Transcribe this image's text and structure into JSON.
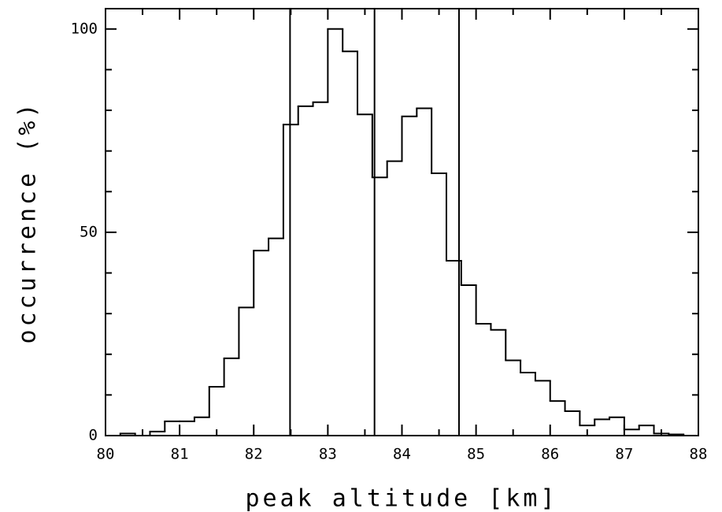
{
  "chart_data": {
    "type": "histogram",
    "x_label": "peak altitude [km]",
    "y_label": "occurrence (%)",
    "bins": [
      80,
      80.2,
      80.4,
      80.6,
      80.8,
      81,
      81.2,
      81.4,
      81.6,
      81.8,
      82,
      82.2,
      82.4,
      82.6,
      82.8,
      83,
      83.2,
      83.4,
      83.6,
      83.8,
      84,
      84.2,
      84.4,
      84.6,
      84.8,
      85,
      85.2,
      85.4,
      85.6,
      85.8,
      86,
      86.2,
      86.4,
      86.6,
      86.8,
      87,
      87.2,
      87.4,
      87.6,
      87.8,
      88
    ],
    "values": [
      0,
      0.5,
      0,
      1,
      3.5,
      3.5,
      4.5,
      12,
      19,
      31.5,
      45.5,
      48.5,
      76.5,
      81,
      82,
      100,
      94.5,
      79,
      63.5,
      67.5,
      78.5,
      80.5,
      64.5,
      43,
      37,
      27.5,
      26,
      18.5,
      15.5,
      13.5,
      8.5,
      6,
      2.5,
      4,
      4.5,
      1.5,
      2.5,
      0.5,
      0.3,
      0
    ],
    "color": "#000000",
    "vlines": [
      82.49,
      83.63,
      84.77
    ],
    "xlim": [
      80,
      88
    ],
    "ylim": [
      0,
      105
    ],
    "xticks": [
      80,
      81,
      82,
      83,
      84,
      85,
      86,
      87,
      88
    ],
    "yticks": [
      0,
      50,
      100
    ],
    "xminorticks": [
      80.5,
      81.5,
      82.5,
      83.5,
      84.5,
      85.5,
      86.5,
      87.5
    ],
    "yminorticks": [
      10,
      20,
      30,
      40,
      60,
      70,
      80,
      90
    ]
  }
}
